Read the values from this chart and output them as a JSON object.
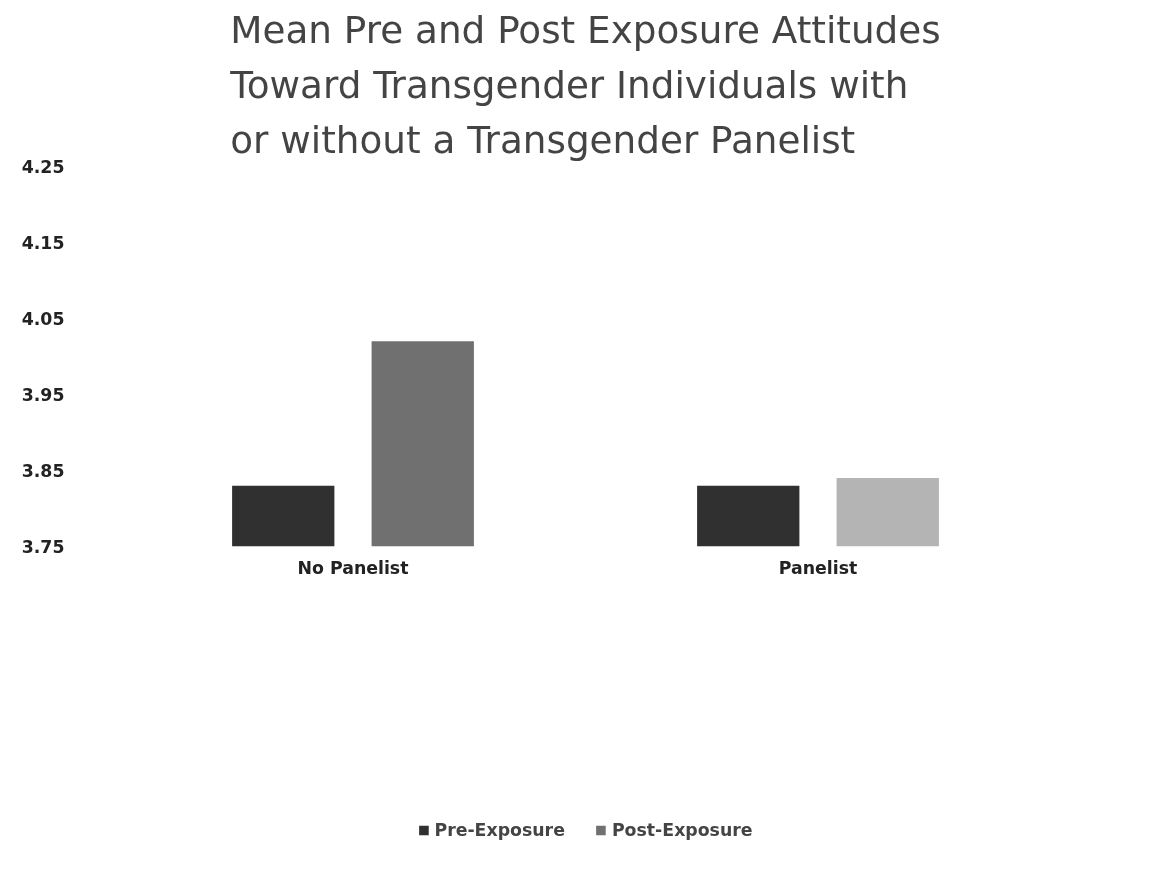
{
  "chart_data": {
    "type": "bar",
    "title": "Mean Pre and Post Exposure Attitudes Toward Transgender Individuals with or without a Transgender Panelist",
    "categories": [
      "No Panelist",
      "Panelist"
    ],
    "series": [
      {
        "name": "Pre-Exposure",
        "color": "#303030",
        "values": [
          3.83,
          3.83
        ]
      },
      {
        "name": "Post-Exposure",
        "colors": [
          "#707070",
          "#b4b4b4"
        ],
        "values": [
          4.02,
          3.84
        ]
      }
    ],
    "ylim": [
      3.75,
      4.25
    ],
    "yticks": [
      3.75,
      3.85,
      3.95,
      4.05,
      4.15,
      4.25
    ],
    "grid": false,
    "legend": "bottom"
  }
}
